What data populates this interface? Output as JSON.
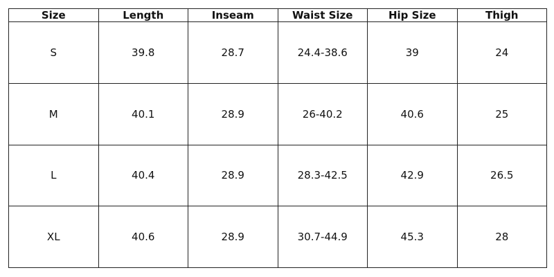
{
  "table": {
    "header": [
      "Size",
      "Length",
      "Inseam",
      "Waist Size",
      "Hip Size",
      "Thigh"
    ],
    "rows": [
      [
        "S",
        "39.8",
        "28.7",
        "24.4-38.6",
        "39",
        "24"
      ],
      [
        "M",
        "40.1",
        "28.9",
        "26-40.2",
        "40.6",
        "25"
      ],
      [
        "L",
        "40.4",
        "28.9",
        "28.3-42.5",
        "42.9",
        "26.5"
      ],
      [
        "XL",
        "40.6",
        "28.9",
        "30.7-44.9",
        "45.3",
        "28"
      ]
    ]
  }
}
